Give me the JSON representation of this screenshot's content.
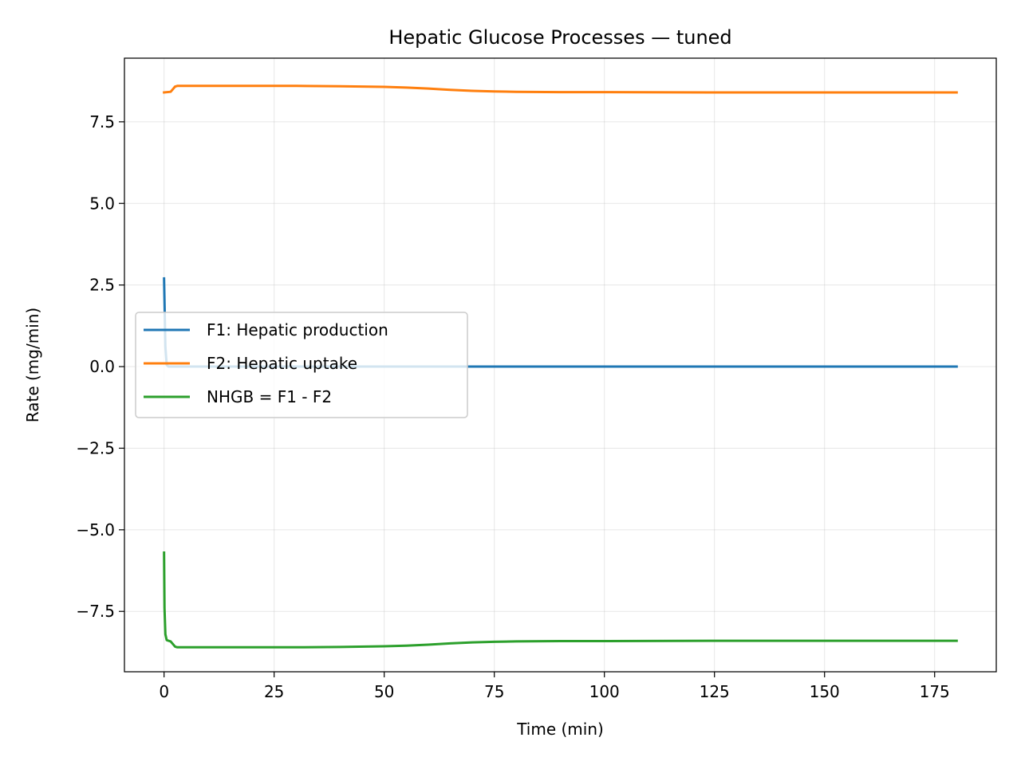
{
  "chart_data": {
    "type": "line",
    "title": "Hepatic Glucose Processes — tuned",
    "xlabel": "Time (min)",
    "ylabel": "Rate (mg/min)",
    "xlim": [
      -9,
      189
    ],
    "ylim": [
      -9.35,
      9.45
    ],
    "xticks": [
      0,
      25,
      50,
      75,
      100,
      125,
      150,
      175
    ],
    "xtick_labels": [
      "0",
      "25",
      "50",
      "75",
      "100",
      "125",
      "150",
      "175"
    ],
    "yticks": [
      -7.5,
      -5.0,
      -2.5,
      0.0,
      2.5,
      5.0,
      7.5
    ],
    "ytick_labels": [
      "−7.5",
      "−5.0",
      "−2.5",
      "0.0",
      "2.5",
      "5.0",
      "7.5"
    ],
    "grid": true,
    "legend_position": "center-left",
    "series": [
      {
        "name": "F1: Hepatic production",
        "color": "#1f77b4",
        "x": [
          0,
          0.3,
          0.6,
          1,
          5,
          20,
          50,
          75,
          100,
          125,
          150,
          180
        ],
        "y": [
          2.7,
          0.6,
          0.05,
          0.0,
          0.0,
          0.0,
          0.0,
          0.0,
          0.0,
          0.0,
          0.0,
          0.0
        ]
      },
      {
        "name": "F2: Hepatic uptake",
        "color": "#ff7f0e",
        "x": [
          0,
          1.5,
          2,
          2.5,
          3,
          10,
          20,
          30,
          40,
          50,
          55,
          60,
          65,
          70,
          75,
          80,
          90,
          100,
          125,
          150,
          180
        ],
        "y": [
          8.4,
          8.42,
          8.5,
          8.58,
          8.6,
          8.6,
          8.6,
          8.6,
          8.59,
          8.57,
          8.55,
          8.52,
          8.48,
          8.45,
          8.43,
          8.42,
          8.41,
          8.41,
          8.4,
          8.4,
          8.4
        ]
      },
      {
        "name": "NHGB = F1 - F2",
        "color": "#2ca02c",
        "x": [
          0,
          0.1,
          0.3,
          0.6,
          1,
          1.5,
          2,
          2.5,
          3,
          10,
          20,
          30,
          40,
          50,
          55,
          60,
          65,
          70,
          75,
          80,
          90,
          100,
          125,
          150,
          180
        ],
        "y": [
          -5.7,
          -7.4,
          -8.2,
          -8.38,
          -8.4,
          -8.42,
          -8.5,
          -8.58,
          -8.6,
          -8.6,
          -8.6,
          -8.6,
          -8.59,
          -8.57,
          -8.55,
          -8.52,
          -8.48,
          -8.45,
          -8.43,
          -8.42,
          -8.41,
          -8.41,
          -8.4,
          -8.4,
          -8.4
        ]
      }
    ]
  }
}
